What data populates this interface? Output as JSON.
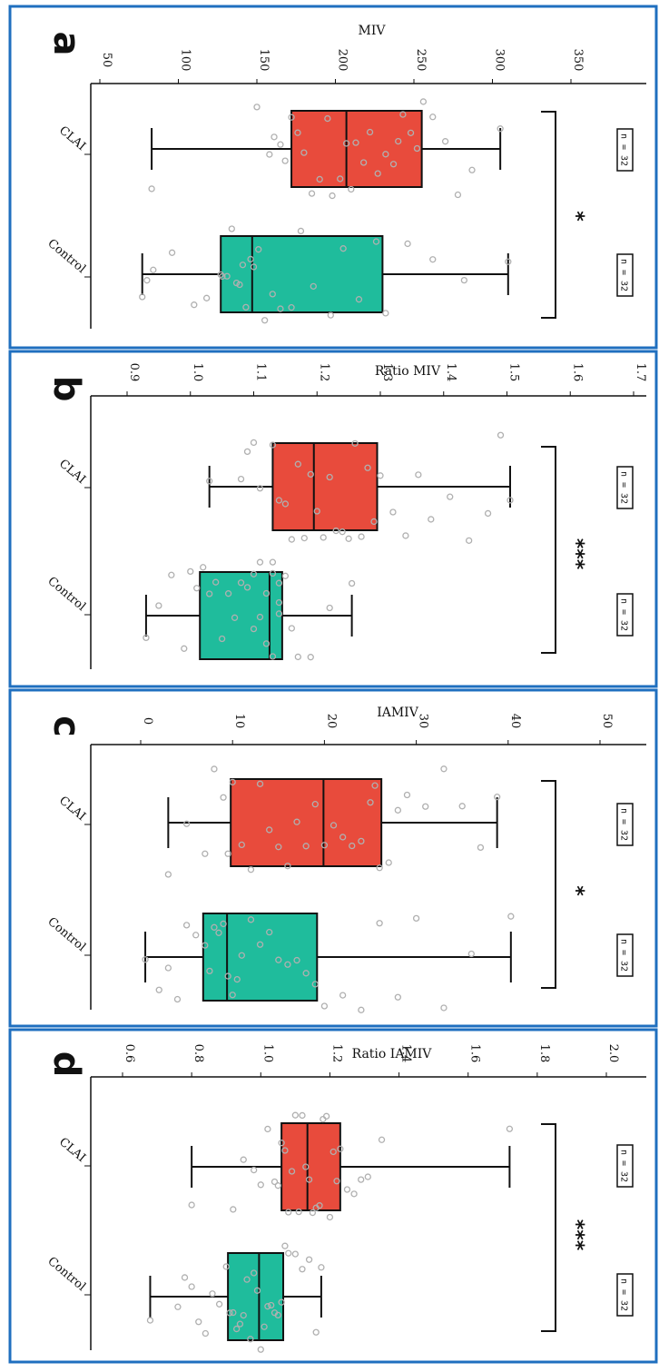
{
  "colors": {
    "frame": "#1f6fbf",
    "box_clai": "#e84b3c",
    "box_control": "#1fbc9c",
    "points": "#b0b0b0",
    "line": "#111111"
  },
  "chart_data": [
    {
      "panel": "a",
      "type": "box",
      "orientation": "figure rotated 90° clockwise",
      "ylabel": "MIV",
      "ylim": [
        50,
        360
      ],
      "ticks": [
        50,
        100,
        150,
        200,
        250,
        300,
        350
      ],
      "tick_labels": [
        "50",
        "100",
        "150",
        "200",
        "250",
        "300",
        "350"
      ],
      "significance": "*",
      "groups": [
        {
          "name": "CLAI",
          "n_label": "n = 32",
          "whisker_low": 83,
          "q1": 172,
          "median": 207,
          "q3": 255,
          "whisker_high": 305,
          "points": [
            83,
            150,
            158,
            161,
            165,
            168,
            172,
            176,
            180,
            185,
            190,
            195,
            198,
            203,
            207,
            210,
            213,
            218,
            222,
            227,
            232,
            237,
            240,
            243,
            248,
            252,
            256,
            262,
            270,
            278,
            287,
            305
          ]
        },
        {
          "name": "Control",
          "n_label": "n = 32",
          "whisker_low": 77,
          "q1": 127,
          "median": 147,
          "q3": 230,
          "whisker_high": 310,
          "points": [
            77,
            80,
            84,
            96,
            110,
            118,
            127,
            128,
            131,
            134,
            137,
            139,
            141,
            143,
            146,
            148,
            151,
            155,
            160,
            165,
            172,
            178,
            186,
            197,
            205,
            215,
            226,
            232,
            246,
            262,
            282,
            310
          ]
        }
      ]
    },
    {
      "panel": "b",
      "type": "box",
      "orientation": "figure rotated 90° clockwise",
      "ylabel": "Ratio MIV",
      "ylim": [
        0.86,
        1.71
      ],
      "ticks": [
        0.9,
        1.0,
        1.1,
        1.2,
        1.3,
        1.4,
        1.5,
        1.6,
        1.7
      ],
      "tick_labels": [
        "0.9",
        "1.0",
        "1.1",
        "1.2",
        "1.3",
        "1.4",
        "1.5",
        "1.6",
        "1.7"
      ],
      "significance": "***",
      "groups": [
        {
          "name": "CLAI",
          "n_label": "n = 32",
          "whisker_low": 1.03,
          "q1": 1.13,
          "median": 1.195,
          "q3": 1.295,
          "whisker_high": 1.505,
          "points": [
            1.03,
            1.08,
            1.09,
            1.1,
            1.11,
            1.13,
            1.14,
            1.15,
            1.16,
            1.17,
            1.18,
            1.19,
            1.2,
            1.21,
            1.22,
            1.23,
            1.24,
            1.25,
            1.26,
            1.27,
            1.28,
            1.29,
            1.3,
            1.32,
            1.34,
            1.36,
            1.38,
            1.41,
            1.44,
            1.47,
            1.49,
            1.505
          ]
        },
        {
          "name": "Control",
          "n_label": "n = 32",
          "whisker_low": 0.93,
          "q1": 1.015,
          "median": 1.125,
          "q3": 1.145,
          "whisker_high": 1.255,
          "points": [
            0.93,
            0.95,
            0.97,
            0.99,
            1.0,
            1.01,
            1.02,
            1.03,
            1.04,
            1.05,
            1.06,
            1.07,
            1.08,
            1.09,
            1.1,
            1.1,
            1.11,
            1.11,
            1.12,
            1.12,
            1.13,
            1.13,
            1.13,
            1.14,
            1.14,
            1.14,
            1.15,
            1.16,
            1.17,
            1.19,
            1.22,
            1.255
          ]
        }
      ]
    },
    {
      "panel": "c",
      "type": "box",
      "orientation": "figure rotated 90° clockwise",
      "ylabel": "IAMIV",
      "ylim": [
        -2,
        54
      ],
      "ticks": [
        0,
        10,
        20,
        30,
        40,
        50
      ],
      "tick_labels": [
        "0",
        "10",
        "20",
        "30",
        "40",
        "50"
      ],
      "significance": "*",
      "groups": [
        {
          "name": "CLAI",
          "n_label": "n = 32",
          "whisker_low": 3,
          "q1": 9.8,
          "median": 19.9,
          "q3": 26.2,
          "whisker_high": 38.8,
          "points": [
            3,
            5,
            7,
            8,
            9,
            9.5,
            10,
            11,
            12,
            13,
            14,
            15,
            16,
            17,
            18,
            19,
            20,
            21,
            22,
            23,
            24,
            25,
            25.5,
            26,
            27,
            28,
            29,
            31,
            33,
            35,
            37,
            38.8
          ]
        },
        {
          "name": "Control",
          "n_label": "n = 32",
          "whisker_low": 0.5,
          "q1": 6.8,
          "median": 9.4,
          "q3": 19.2,
          "whisker_high": 40.3,
          "points": [
            0.5,
            2,
            3,
            4,
            5,
            6,
            7,
            7.5,
            8,
            8.5,
            9,
            9.5,
            10,
            10.5,
            11,
            12,
            13,
            14,
            15,
            16,
            17,
            18,
            19,
            20,
            22,
            24,
            26,
            28,
            30,
            33,
            36,
            40.3
          ]
        }
      ]
    },
    {
      "panel": "d",
      "type": "box",
      "orientation": "figure rotated 90° clockwise",
      "ylabel": "Ratio IAMIV",
      "ylim": [
        0.52,
        2.05
      ],
      "ticks": [
        0.6,
        0.8,
        1.0,
        1.2,
        1.4,
        1.6,
        1.8,
        2.0
      ],
      "tick_labels": [
        "0.6",
        "0.8",
        "1.0",
        "1.2",
        "1.4",
        "1.6",
        "1.8",
        "2.0"
      ],
      "significance": "***",
      "groups": [
        {
          "name": "CLAI",
          "n_label": "n = 32",
          "whisker_low": 0.8,
          "q1": 1.06,
          "median": 1.135,
          "q3": 1.23,
          "whisker_high": 1.72,
          "points": [
            0.8,
            0.92,
            0.95,
            0.98,
            1.0,
            1.02,
            1.04,
            1.05,
            1.06,
            1.07,
            1.08,
            1.09,
            1.1,
            1.11,
            1.12,
            1.13,
            1.14,
            1.15,
            1.16,
            1.17,
            1.18,
            1.19,
            1.2,
            1.21,
            1.22,
            1.23,
            1.25,
            1.27,
            1.29,
            1.31,
            1.35,
            1.72
          ]
        },
        {
          "name": "Control",
          "n_label": "n = 32",
          "whisker_low": 0.68,
          "q1": 0.905,
          "median": 0.995,
          "q3": 1.065,
          "whisker_high": 1.175,
          "points": [
            0.68,
            0.76,
            0.78,
            0.8,
            0.82,
            0.84,
            0.86,
            0.88,
            0.9,
            0.91,
            0.92,
            0.93,
            0.94,
            0.95,
            0.96,
            0.97,
            0.98,
            0.99,
            1.0,
            1.01,
            1.02,
            1.03,
            1.04,
            1.05,
            1.06,
            1.07,
            1.08,
            1.1,
            1.12,
            1.14,
            1.16,
            1.175
          ]
        }
      ]
    }
  ]
}
